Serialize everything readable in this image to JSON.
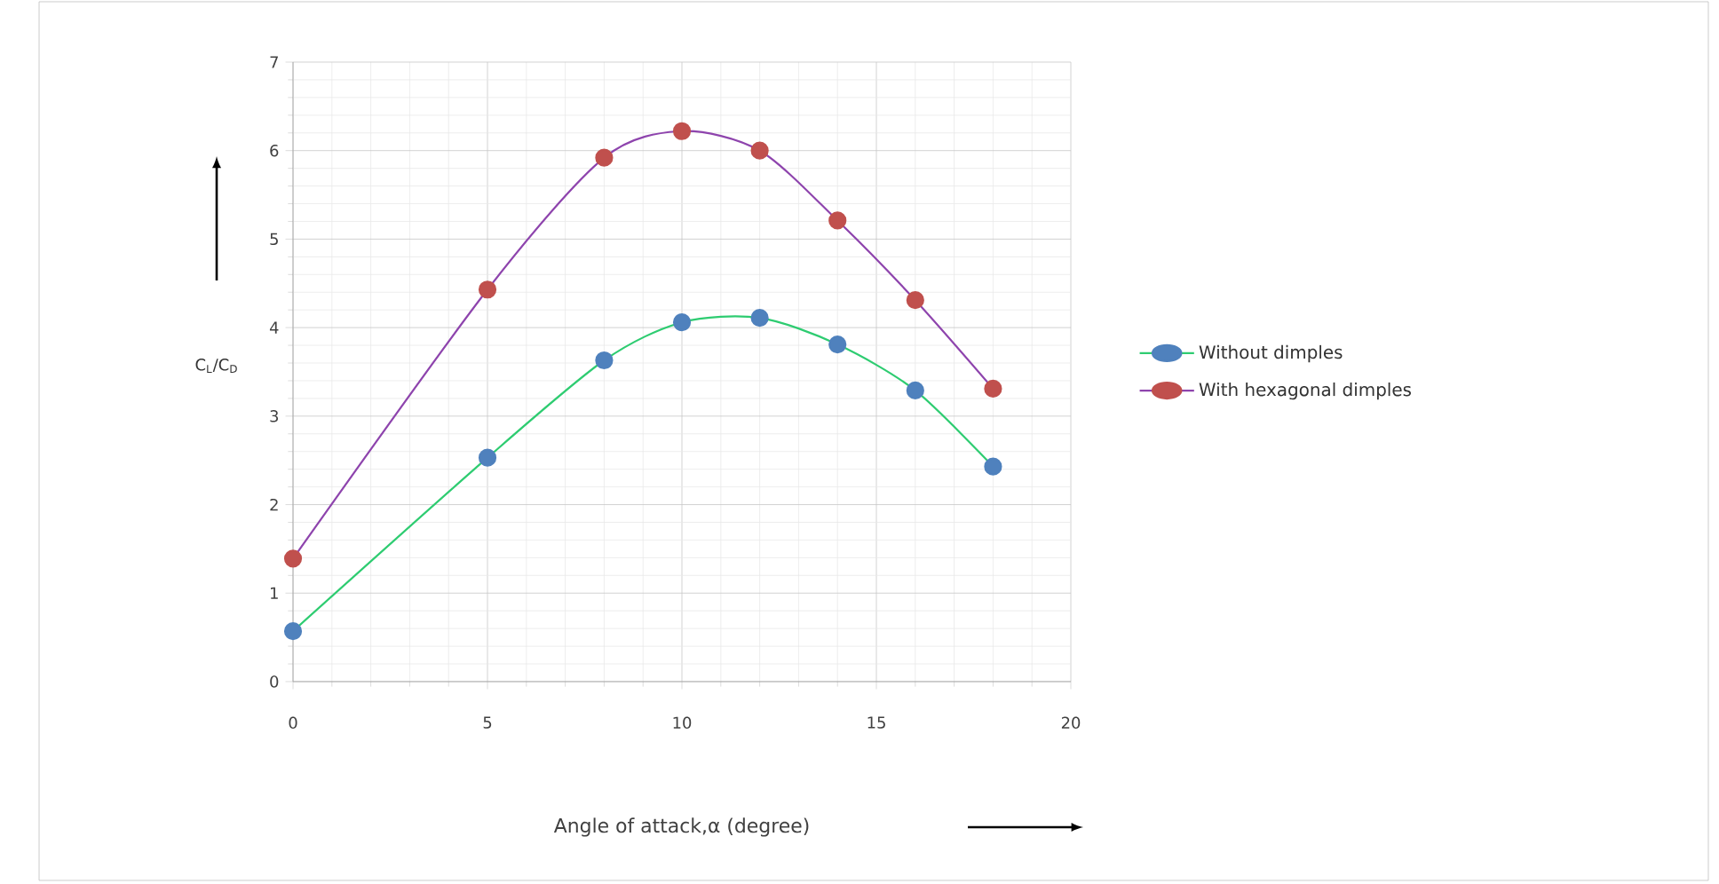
{
  "chart_data": {
    "type": "line",
    "xlabel": "Angle of attack,α (degree)",
    "ylabel": "C$_{L}$/C$_{D}$",
    "xlim": [
      0,
      20
    ],
    "xticks": [
      0,
      5,
      10,
      15,
      20
    ],
    "ylim": [
      0,
      7
    ],
    "yticks": [
      0,
      1,
      2,
      3,
      4,
      5,
      6,
      7
    ],
    "grid": true,
    "legend": "right",
    "marker": "circle",
    "series": [
      {
        "name": "Without dimples",
        "color": "#4f81bd",
        "x": [
          0,
          5,
          8,
          10,
          12,
          14,
          16,
          18
        ],
        "values": [
          0.57,
          2.53,
          3.63,
          4.06,
          4.11,
          3.81,
          3.29,
          2.43
        ]
      },
      {
        "name": "With hexagonal dimples",
        "color": "#c0504d",
        "x": [
          0,
          5,
          8,
          10,
          12,
          14,
          16,
          18
        ],
        "values": [
          1.39,
          4.43,
          5.92,
          6.22,
          6.0,
          5.21,
          4.31,
          3.31
        ]
      }
    ]
  }
}
